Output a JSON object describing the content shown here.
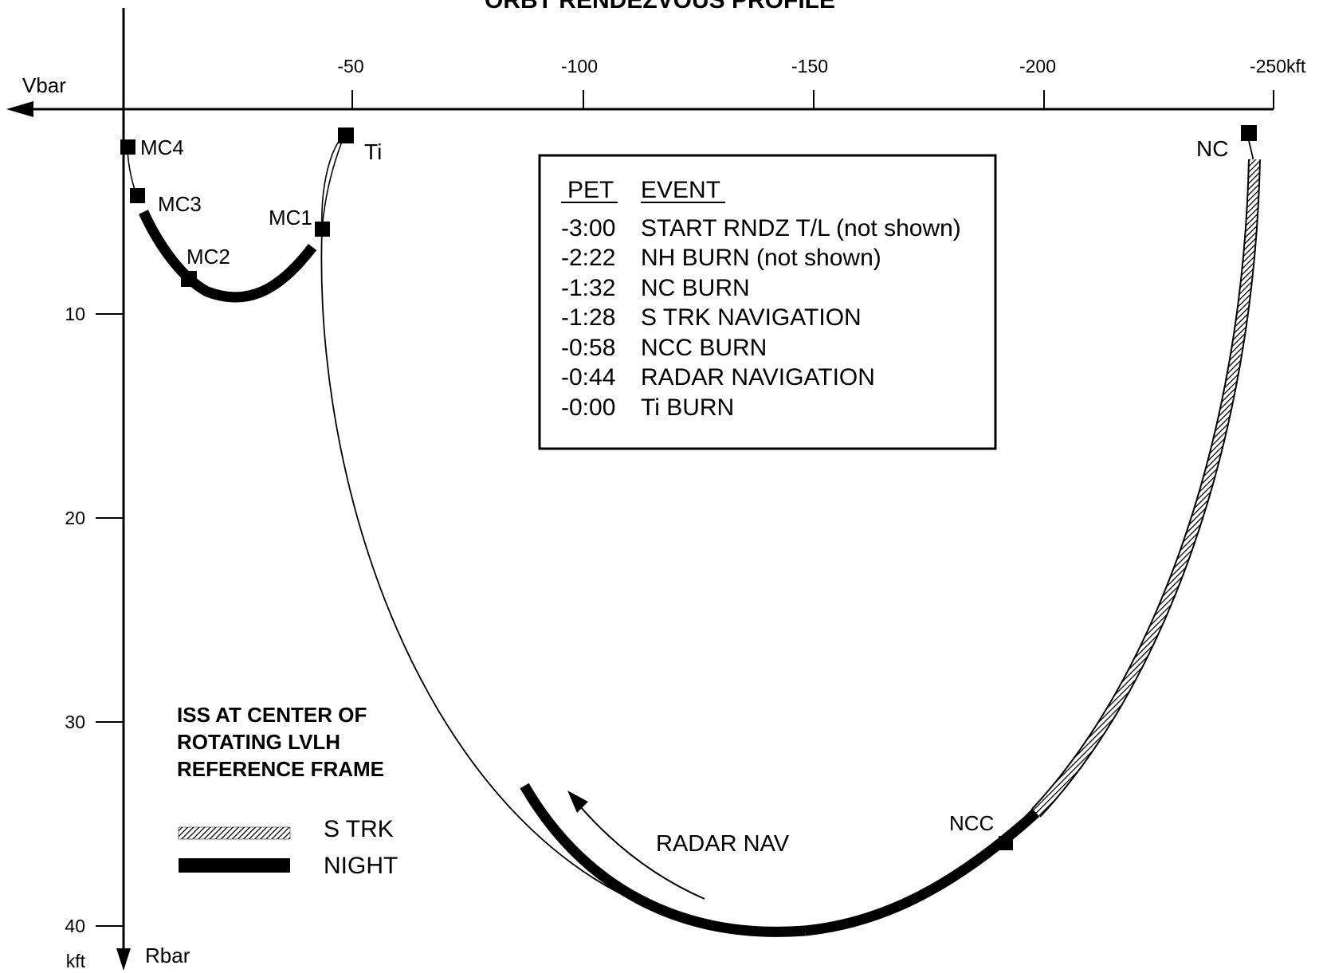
{
  "title": "ORBT RENDEZVOUS PROFILE",
  "axes": {
    "vbar_label": "Vbar",
    "rbar_label": "Rbar",
    "x_unit": "kft",
    "y_unit": "kft",
    "x_ticks": [
      "-50",
      "-100",
      "-150",
      "-200",
      "-250"
    ],
    "y_ticks": [
      "10",
      "20",
      "30",
      "40"
    ]
  },
  "markers": {
    "mc4": "MC4",
    "mc3": "MC3",
    "mc2": "MC2",
    "mc1": "MC1",
    "ti": "Ti",
    "nc": "NC",
    "ncc": "NCC"
  },
  "event_table": {
    "header_pet": "PET",
    "header_event": "EVENT",
    "rows": [
      {
        "pet": "-3:00",
        "event": "START RNDZ T/L (not shown)"
      },
      {
        "pet": "-2:22",
        "event": "NH BURN (not shown)"
      },
      {
        "pet": "-1:32",
        "event": "NC BURN"
      },
      {
        "pet": "-1:28",
        "event": "S TRK NAVIGATION"
      },
      {
        "pet": "-0:58",
        "event": "NCC BURN"
      },
      {
        "pet": "-0:44",
        "event": "RADAR NAVIGATION"
      },
      {
        "pet": "-0:00",
        "event": "Ti BURN"
      }
    ]
  },
  "note": {
    "line1": "ISS AT CENTER OF",
    "line2": "ROTATING LVLH",
    "line3": "REFERENCE FRAME"
  },
  "legend": {
    "strk": "S TRK",
    "night": "NIGHT"
  },
  "radar_nav_label": "RADAR NAV"
}
